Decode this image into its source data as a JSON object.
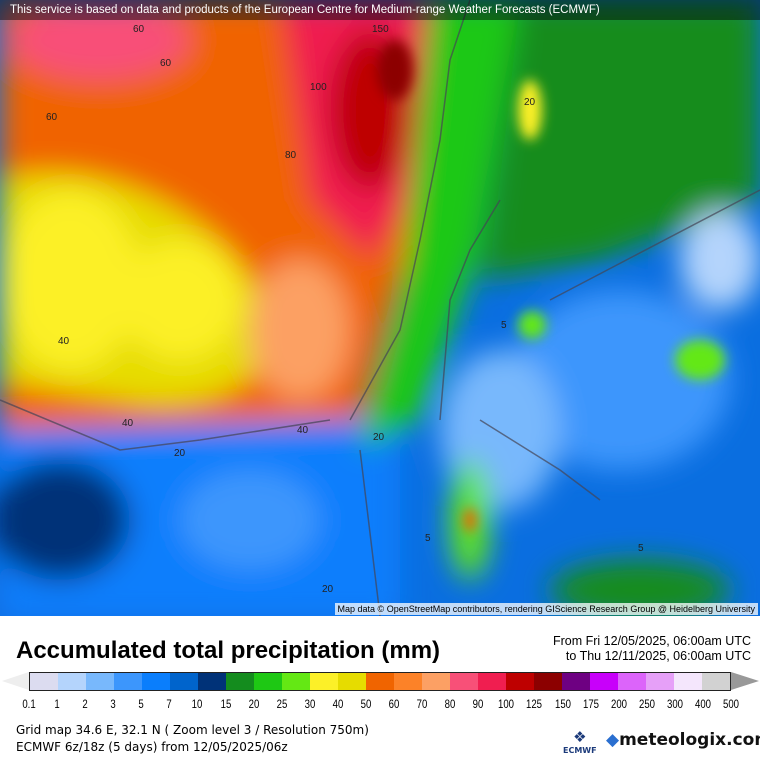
{
  "banner": "This service is based on data and products of the European Centre for Medium-range Weather Forecasts (ECMWF)",
  "attribution": "Map data © OpenStreetMap contributors, rendering GIScience Research Group @ Heidelberg University",
  "contour_labels": [
    "60",
    "60",
    "60",
    "100",
    "80",
    "40",
    "40",
    "40",
    "20",
    "20",
    "5",
    "5",
    "5",
    "20",
    "20",
    "150"
  ],
  "legend": {
    "title": "Accumulated total precipitation (mm)",
    "from": "From Fri 12/05/2025, 06:00am UTC",
    "to": "to Thu 12/11/2025, 06:00am UTC",
    "ticks": [
      "0.1",
      "1",
      "2",
      "3",
      "5",
      "7",
      "10",
      "15",
      "20",
      "25",
      "30",
      "40",
      "50",
      "60",
      "70",
      "80",
      "90",
      "100",
      "125",
      "150",
      "175",
      "200",
      "250",
      "300",
      "400",
      "500"
    ],
    "colors": [
      "#dcdcf0",
      "#b4d4fc",
      "#78b8fc",
      "#3c96fc",
      "#0a7efc",
      "#0064cc",
      "#003278",
      "#148c1e",
      "#1ec814",
      "#64e814",
      "#fcf028",
      "#e6dc00",
      "#f06400",
      "#fc8228",
      "#fca064",
      "#f85078",
      "#f01e50",
      "#be0000",
      "#8c0000",
      "#6e0082",
      "#c800fa",
      "#dc64fa",
      "#e6a0f8",
      "#f4e6fc",
      "#d2d2d2"
    ],
    "under_color": "#eeeeee",
    "over_color": "#999999"
  },
  "info": {
    "grid": "Grid map 34.6 E, 32.1 N ( Zoom level 3 / Resolution 750m)",
    "model": "ECMWF 6z/18z (5 days) from  12/05/2025/06z"
  },
  "logos": {
    "ecmwf": "ECMWF",
    "meteologix": "meteologix.com"
  }
}
